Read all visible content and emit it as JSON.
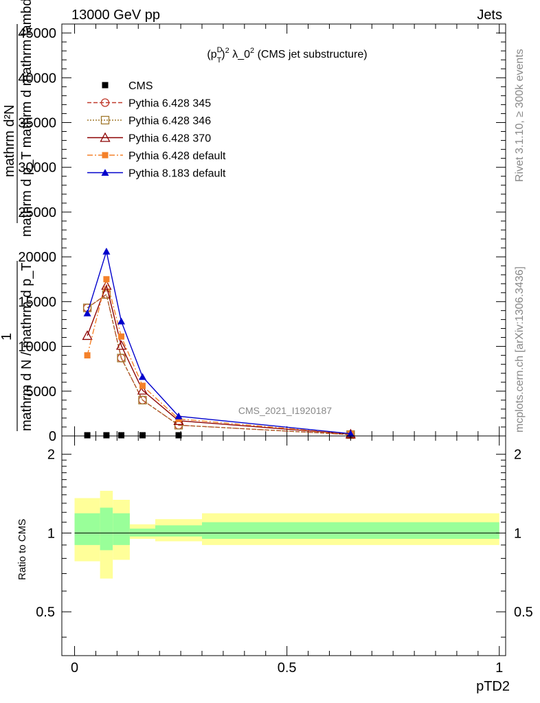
{
  "header": {
    "left": "13000 GeV pp",
    "right": "Jets",
    "side_top": "Rivet 3.1.10, ≥ 300k events",
    "side_bottom": "mcplots.cern.ch [arXiv:1306.3436]"
  },
  "colors": {
    "CMS": "#000000",
    "p345": "#c0392b",
    "p346": "#a0782c",
    "p370": "#8b0000",
    "p6def": "#f4812a",
    "p8def": "#0000cc",
    "band_outer": "#ffff99",
    "band_inner": "#99ff99"
  },
  "chart_data": [
    {
      "type": "line",
      "title": "(p_T^D)^2 λ_0^2 (CMS jet substructure)",
      "title_parts": {
        "prefix": "(p",
        "sub": "T",
        "sup": "D",
        "close": ")",
        "exp": "2",
        "mid": " λ_0",
        "exp2": "2",
        "suffix": " (CMS jet substructure)"
      },
      "watermark": "CMS_2021_I1920187",
      "ylabel_lines": [
        "mathrm d²N",
        "mathrm d p_T mathrm d mathrm lambda",
        "1",
        "mathrm d N / mathrm d p_T"
      ],
      "xlim": [
        -0.03,
        1.015
      ],
      "ylim": [
        0,
        46000
      ],
      "yticks": [
        0,
        5000,
        10000,
        15000,
        20000,
        25000,
        30000,
        35000,
        40000,
        45000
      ],
      "yticklabels": [
        "0",
        "5000",
        "10000",
        "15000",
        "20000",
        "25000",
        "30000",
        "35000",
        "40000",
        "45000"
      ],
      "x": [
        0.03,
        0.075,
        0.11,
        0.16,
        0.245,
        0.65
      ],
      "series": [
        {
          "name": "CMS",
          "key": "CMS",
          "values": [
            0,
            0,
            0,
            0,
            0,
            0
          ]
        },
        {
          "name": "Pythia 6.428 345",
          "key": "p345",
          "values": [
            14300,
            15800,
            8700,
            4000,
            1200,
            150
          ]
        },
        {
          "name": "Pythia 6.428 346",
          "key": "p346",
          "values": [
            14300,
            15800,
            8700,
            4000,
            1200,
            150
          ]
        },
        {
          "name": "Pythia 6.428 370",
          "key": "p370",
          "values": [
            11200,
            16800,
            10100,
            5100,
            1700,
            200
          ]
        },
        {
          "name": "Pythia 6.428 default",
          "key": "p6def",
          "values": [
            9000,
            17500,
            11100,
            5600,
            1900,
            220
          ]
        },
        {
          "name": "Pythia 8.183 default",
          "key": "p8def",
          "values": [
            13700,
            20600,
            12800,
            6600,
            2200,
            250
          ]
        }
      ]
    },
    {
      "type": "area",
      "ylabel": "Ratio to CMS",
      "xlabel": "pTD2",
      "xlim": [
        -0.03,
        1.015
      ],
      "ylim": [
        0.34,
        2.35
      ],
      "yticks": [
        0.5,
        1,
        2
      ],
      "yticklabels": [
        "0.5",
        "1",
        "2"
      ],
      "xticks": [
        0,
        0.5,
        1
      ],
      "xticklabels": [
        "0",
        "0.5",
        "1"
      ],
      "bands": [
        {
          "x0": 0.0,
          "x1": 0.06,
          "outer": [
            0.78,
            1.36
          ],
          "inner": [
            0.9,
            1.19
          ]
        },
        {
          "x0": 0.06,
          "x1": 0.09,
          "outer": [
            0.67,
            1.45
          ],
          "inner": [
            0.86,
            1.25
          ]
        },
        {
          "x0": 0.09,
          "x1": 0.13,
          "outer": [
            0.79,
            1.34
          ],
          "inner": [
            0.9,
            1.19
          ]
        },
        {
          "x0": 0.13,
          "x1": 0.19,
          "outer": [
            0.95,
            1.08
          ],
          "inner": [
            0.97,
            1.04
          ]
        },
        {
          "x0": 0.19,
          "x1": 0.3,
          "outer": [
            0.93,
            1.13
          ],
          "inner": [
            0.97,
            1.07
          ]
        },
        {
          "x0": 0.3,
          "x1": 1.0,
          "outer": [
            0.9,
            1.19
          ],
          "inner": [
            0.95,
            1.1
          ]
        }
      ]
    }
  ]
}
